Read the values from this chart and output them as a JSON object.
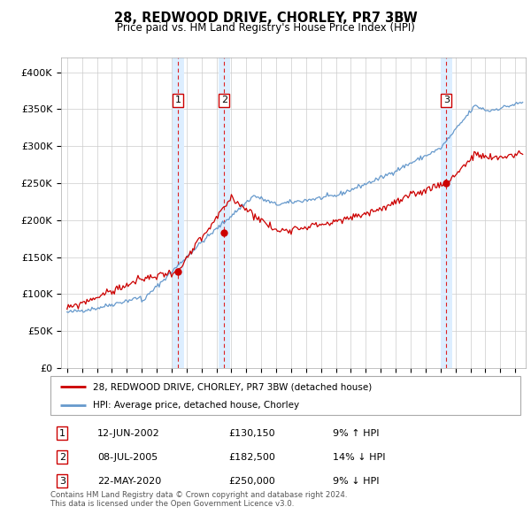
{
  "title": "28, REDWOOD DRIVE, CHORLEY, PR7 3BW",
  "subtitle": "Price paid vs. HM Land Registry's House Price Index (HPI)",
  "ylim": [
    0,
    420000
  ],
  "yticks": [
    0,
    50000,
    100000,
    150000,
    200000,
    250000,
    300000,
    350000,
    400000
  ],
  "ytick_labels": [
    "£0",
    "£50K",
    "£100K",
    "£150K",
    "£200K",
    "£250K",
    "£300K",
    "£350K",
    "£400K"
  ],
  "red_line_color": "#cc0000",
  "blue_line_color": "#6699cc",
  "sale_marker_color": "#cc0000",
  "sale1_date_x": 2002.44,
  "sale1_price": 130150,
  "sale2_date_x": 2005.52,
  "sale2_price": 182500,
  "sale3_date_x": 2020.39,
  "sale3_price": 250000,
  "legend_red_label": "28, REDWOOD DRIVE, CHORLEY, PR7 3BW (detached house)",
  "legend_blue_label": "HPI: Average price, detached house, Chorley",
  "table_data": [
    [
      "1",
      "12-JUN-2002",
      "£130,150",
      "9% ↑ HPI"
    ],
    [
      "2",
      "08-JUL-2005",
      "£182,500",
      "14% ↓ HPI"
    ],
    [
      "3",
      "22-MAY-2020",
      "£250,000",
      "9% ↓ HPI"
    ]
  ],
  "footer": "Contains HM Land Registry data © Crown copyright and database right 2024.\nThis data is licensed under the Open Government Licence v3.0.",
  "background_color": "#ffffff",
  "grid_color": "#cccccc",
  "vline_color": "#dd2222",
  "shade_color": "#ddeeff",
  "xlim_left": 1994.6,
  "xlim_right": 2025.7
}
